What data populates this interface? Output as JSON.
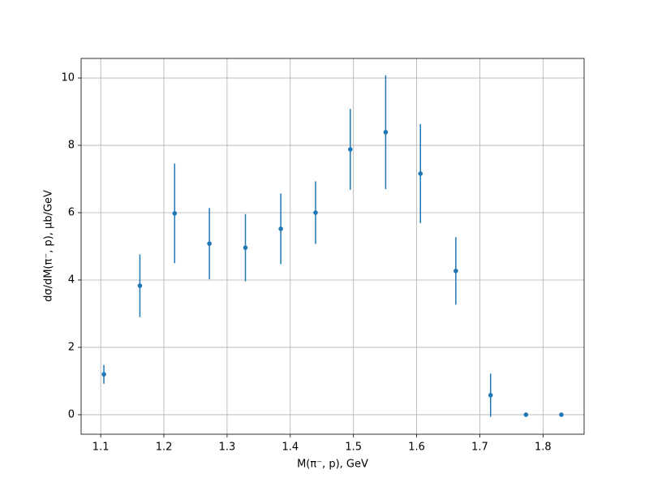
{
  "chart_data": {
    "type": "errorbar",
    "x_label": "M(π⁻, p), GeV",
    "y_label": "dσ/dM(π⁻, p), μb/GeV",
    "color": "#1f77b4",
    "grid": true,
    "xlim": [
      1.069,
      1.865
    ],
    "ylim": [
      -0.58,
      10.58
    ],
    "xticks": [
      1.1,
      1.2,
      1.3,
      1.4,
      1.5,
      1.6,
      1.7,
      1.8
    ],
    "yticks": [
      0,
      2,
      4,
      6,
      8,
      10
    ],
    "x": [
      1.105,
      1.162,
      1.217,
      1.272,
      1.329,
      1.385,
      1.44,
      1.495,
      1.551,
      1.606,
      1.662,
      1.717,
      1.773,
      1.829
    ],
    "values": [
      1.2,
      3.83,
      5.98,
      5.08,
      4.96,
      5.52,
      6.0,
      7.88,
      8.39,
      7.16,
      4.27,
      0.58,
      0,
      0
    ],
    "errors": [
      0.28,
      0.93,
      1.48,
      1.06,
      1.0,
      1.05,
      0.93,
      1.2,
      1.69,
      1.47,
      1.0,
      0.64,
      0,
      0
    ]
  }
}
